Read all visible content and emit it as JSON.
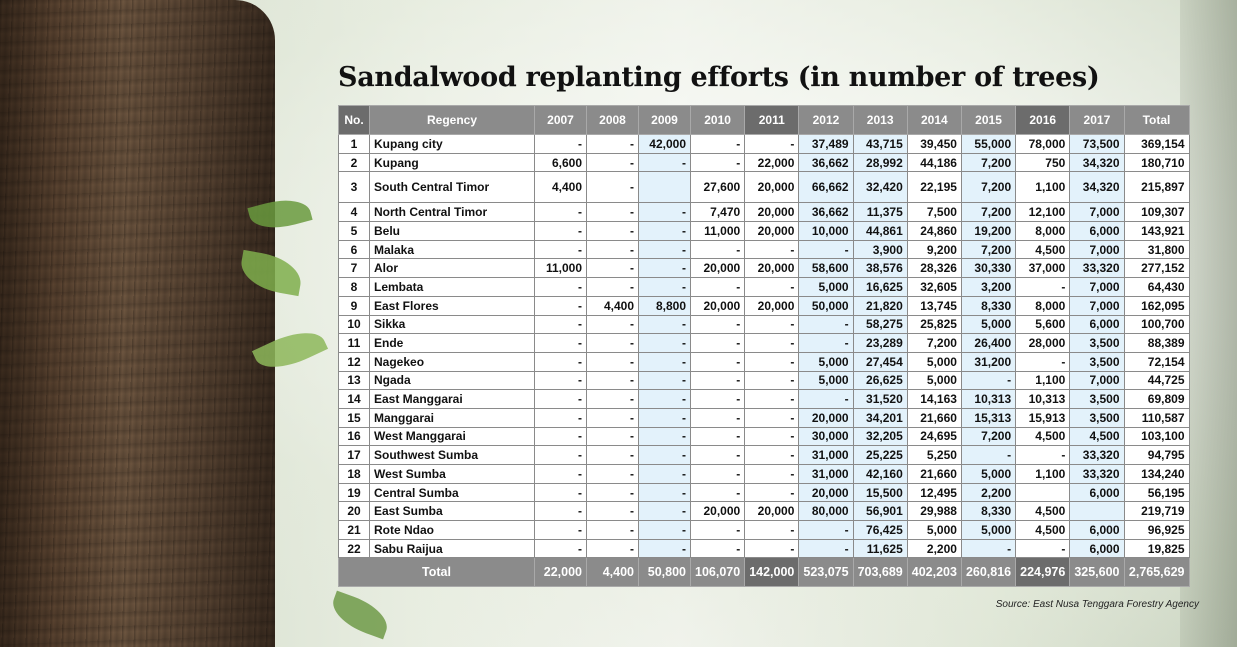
{
  "title": "Sandalwood replanting efforts (in number of trees)",
  "source": "Source: East Nusa Tenggara Forestry Agency",
  "colors": {
    "header": "#8b8b8b",
    "header_dark": "#6c6c6c",
    "light_col": "#e3f2fb"
  },
  "chart_data": {
    "type": "table",
    "columns": [
      "No.",
      "Regency",
      "2007",
      "2008",
      "2009",
      "2010",
      "2011",
      "2012",
      "2013",
      "2014",
      "2015",
      "2016",
      "2017",
      "Total"
    ],
    "rows": [
      [
        "1",
        "Kupang city",
        "-",
        "-",
        "42,000",
        "-",
        "-",
        "37,489",
        "43,715",
        "39,450",
        "55,000",
        "78,000",
        "73,500",
        "369,154"
      ],
      [
        "2",
        "Kupang",
        "6,600",
        "-",
        "-",
        "-",
        "22,000",
        "36,662",
        "28,992",
        "44,186",
        "7,200",
        "750",
        "34,320",
        "180,710"
      ],
      [
        "3",
        "South Central Timor",
        "4,400",
        "-",
        "",
        "27,600",
        "20,000",
        "66,662",
        "32,420",
        "22,195",
        "7,200",
        "1,100",
        "34,320",
        "215,897"
      ],
      [
        "4",
        "North Central Timor",
        "-",
        "-",
        "-",
        "7,470",
        "20,000",
        "36,662",
        "11,375",
        "7,500",
        "7,200",
        "12,100",
        "7,000",
        "109,307"
      ],
      [
        "5",
        "Belu",
        "-",
        "-",
        "-",
        "11,000",
        "20,000",
        "10,000",
        "44,861",
        "24,860",
        "19,200",
        "8,000",
        "6,000",
        "143,921"
      ],
      [
        "6",
        "Malaka",
        "-",
        "-",
        "-",
        "-",
        "-",
        "-",
        "3,900",
        "9,200",
        "7,200",
        "4,500",
        "7,000",
        "31,800"
      ],
      [
        "7",
        "Alor",
        "11,000",
        "-",
        "-",
        "20,000",
        "20,000",
        "58,600",
        "38,576",
        "28,326",
        "30,330",
        "37,000",
        "33,320",
        "277,152"
      ],
      [
        "8",
        "Lembata",
        "-",
        "-",
        "-",
        "-",
        "-",
        "5,000",
        "16,625",
        "32,605",
        "3,200",
        "-",
        "7,000",
        "64,430"
      ],
      [
        "9",
        "East Flores",
        "-",
        "4,400",
        "8,800",
        "20,000",
        "20,000",
        "50,000",
        "21,820",
        "13,745",
        "8,330",
        "8,000",
        "7,000",
        "162,095"
      ],
      [
        "10",
        "Sikka",
        "-",
        "-",
        "-",
        "-",
        "-",
        "-",
        "58,275",
        "25,825",
        "5,000",
        "5,600",
        "6,000",
        "100,700"
      ],
      [
        "11",
        "Ende",
        "-",
        "-",
        "-",
        "-",
        "-",
        "-",
        "23,289",
        "7,200",
        "26,400",
        "28,000",
        "3,500",
        "88,389"
      ],
      [
        "12",
        "Nagekeo",
        "-",
        "-",
        "-",
        "-",
        "-",
        "5,000",
        "27,454",
        "5,000",
        "31,200",
        "-",
        "3,500",
        "72,154"
      ],
      [
        "13",
        "Ngada",
        "-",
        "-",
        "-",
        "-",
        "-",
        "5,000",
        "26,625",
        "5,000",
        "-",
        "1,100",
        "7,000",
        "44,725"
      ],
      [
        "14",
        "East Manggarai",
        "-",
        "-",
        "-",
        "-",
        "-",
        "-",
        "31,520",
        "14,163",
        "10,313",
        "10,313",
        "3,500",
        "69,809"
      ],
      [
        "15",
        "Manggarai",
        "-",
        "-",
        "-",
        "-",
        "-",
        "20,000",
        "34,201",
        "21,660",
        "15,313",
        "15,913",
        "3,500",
        "110,587"
      ],
      [
        "16",
        "West Manggarai",
        "-",
        "-",
        "-",
        "-",
        "-",
        "30,000",
        "32,205",
        "24,695",
        "7,200",
        "4,500",
        "4,500",
        "103,100"
      ],
      [
        "17",
        "Southwest Sumba",
        "-",
        "-",
        "-",
        "-",
        "-",
        "31,000",
        "25,225",
        "5,250",
        "-",
        "-",
        "33,320",
        "94,795"
      ],
      [
        "18",
        "West Sumba",
        "-",
        "-",
        "-",
        "-",
        "-",
        "31,000",
        "42,160",
        "21,660",
        "5,000",
        "1,100",
        "33,320",
        "134,240"
      ],
      [
        "19",
        "Central Sumba",
        "-",
        "-",
        "-",
        "-",
        "-",
        "20,000",
        "15,500",
        "12,495",
        "2,200",
        "",
        "6,000",
        "56,195"
      ],
      [
        "20",
        "East Sumba",
        "-",
        "-",
        "-",
        "20,000",
        "20,000",
        "80,000",
        "56,901",
        "29,988",
        "8,330",
        "4,500",
        "",
        "219,719"
      ],
      [
        "21",
        "Rote Ndao",
        "-",
        "-",
        "-",
        "-",
        "-",
        "-",
        "76,425",
        "5,000",
        "5,000",
        "4,500",
        "6,000",
        "96,925"
      ],
      [
        "22",
        "Sabu Raijua",
        "-",
        "-",
        "-",
        "-",
        "-",
        "-",
        "11,625",
        "2,200",
        "-",
        "-",
        "6,000",
        "19,825"
      ]
    ],
    "totals_label": "Total",
    "totals": [
      "22,000",
      "4,400",
      "50,800",
      "106,070",
      "142,000",
      "523,075",
      "703,689",
      "402,203",
      "260,816",
      "224,976",
      "325,600",
      "2,765,629"
    ]
  }
}
